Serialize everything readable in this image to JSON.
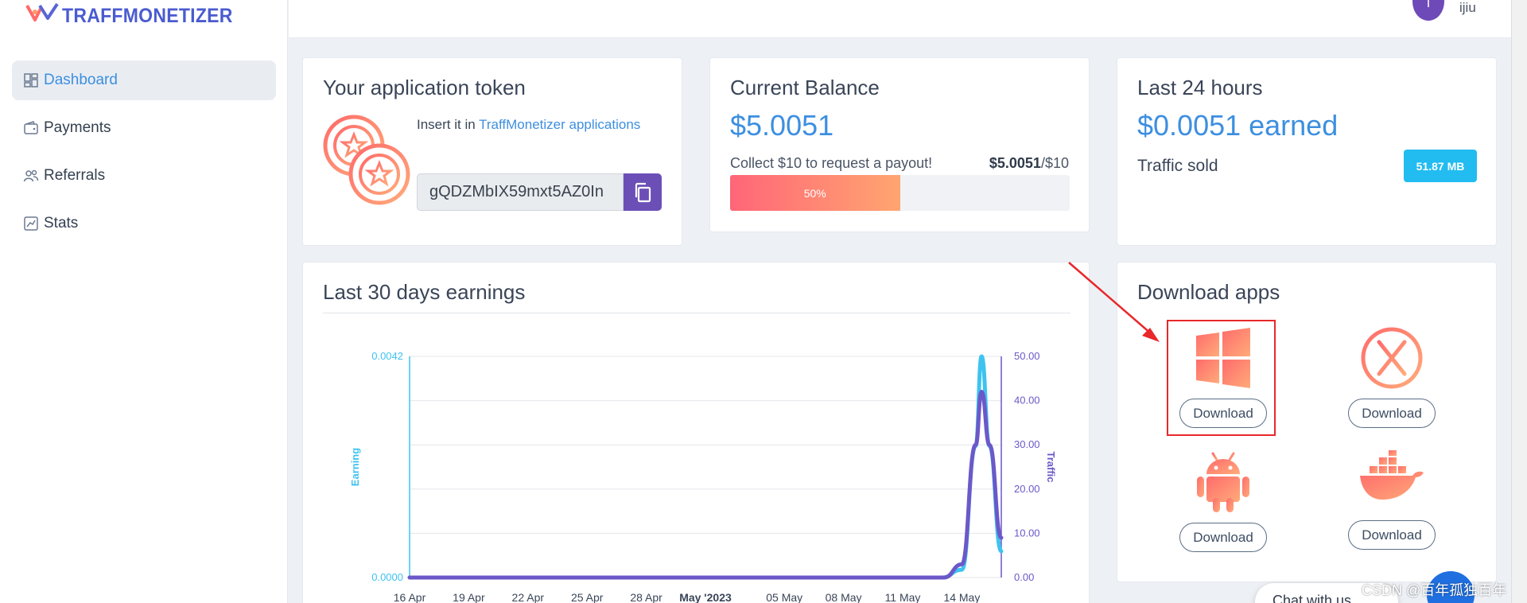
{
  "app": {
    "logo_text": "TRAFFMONETIZER"
  },
  "sidebar": {
    "items": [
      {
        "label": "Dashboard",
        "icon": "dashboard-icon",
        "active": true
      },
      {
        "label": "Payments",
        "icon": "wallet-icon",
        "active": false
      },
      {
        "label": "Referrals",
        "icon": "users-icon",
        "active": false
      },
      {
        "label": "Stats",
        "icon": "chart-line-icon",
        "active": false
      }
    ]
  },
  "header": {
    "avatar_letter": "I",
    "username": "ijiu"
  },
  "token_card": {
    "title": "Your application token",
    "insert_prefix": "Insert it in",
    "insert_link": "TraffMonetizer applications",
    "token_value": "gQDZMbIX59mxt5AZ0In"
  },
  "balance_card": {
    "title": "Current Balance",
    "value": "$5.0051",
    "payout_note": "Collect $10 to request a payout!",
    "payout_current": "$5.0051",
    "payout_target": "/$10",
    "progress_label": "50%",
    "progress_fraction": 0.5
  },
  "last24_card": {
    "title": "Last 24 hours",
    "earned": "$0.0051 earned",
    "traffic_label": "Traffic sold",
    "traffic_value": "51.87 MB"
  },
  "chart_card": {
    "title": "Last 30 days earnings"
  },
  "chart_data": {
    "type": "line",
    "title": "Last 30 days earnings",
    "ylabel_left": "Earning",
    "ylabel_right": "Traffic",
    "left_ticks": [
      "0.0042",
      "0.0000"
    ],
    "right_ticks": [
      "50.00",
      "40.00",
      "30.00",
      "20.00",
      "10.00",
      "0.00"
    ],
    "ylim_left": [
      0,
      0.0042
    ],
    "ylim_right": [
      0,
      50
    ],
    "x_ticks": [
      "16 Apr",
      "19 Apr",
      "22 Apr",
      "25 Apr",
      "28 Apr",
      "May '2023",
      "05 May",
      "08 May",
      "11 May",
      "14 May"
    ],
    "x_days": [
      0,
      3,
      6,
      9,
      12,
      15,
      19,
      22,
      25,
      28
    ],
    "x_range_days": [
      0,
      30
    ],
    "series": [
      {
        "name": "Earning",
        "axis": "left",
        "color": "#3ec3f0",
        "points": [
          [
            0,
            0
          ],
          [
            27,
            0
          ],
          [
            28,
            0.00015
          ],
          [
            28.7,
            0.0025
          ],
          [
            29,
            0.0042
          ],
          [
            29.4,
            0.0025
          ],
          [
            30,
            0.0005
          ]
        ]
      },
      {
        "name": "Traffic",
        "axis": "right",
        "color": "#6c58c8",
        "points": [
          [
            0,
            0
          ],
          [
            27.1,
            0
          ],
          [
            28,
            3
          ],
          [
            28.7,
            30
          ],
          [
            29,
            42
          ],
          [
            29.4,
            30
          ],
          [
            30,
            9
          ]
        ]
      }
    ]
  },
  "downloads_card": {
    "title": "Download apps",
    "apps": [
      {
        "platform": "windows",
        "icon": "windows-icon",
        "button": "Download"
      },
      {
        "platform": "macos",
        "icon": "macos-icon",
        "button": "Download"
      },
      {
        "platform": "android",
        "icon": "android-icon",
        "button": "Download"
      },
      {
        "platform": "docker",
        "icon": "docker-icon",
        "button": "Download"
      }
    ]
  },
  "chat": {
    "label": "Chat with us"
  },
  "watermark": {
    "text": "CSDN @百年孤独百年"
  },
  "colors": {
    "accent": "#3d8fe0",
    "purple": "#6c4fb6",
    "badge": "#22bcf0",
    "gradient_start": "#ff6678",
    "gradient_end": "#ffa570"
  }
}
